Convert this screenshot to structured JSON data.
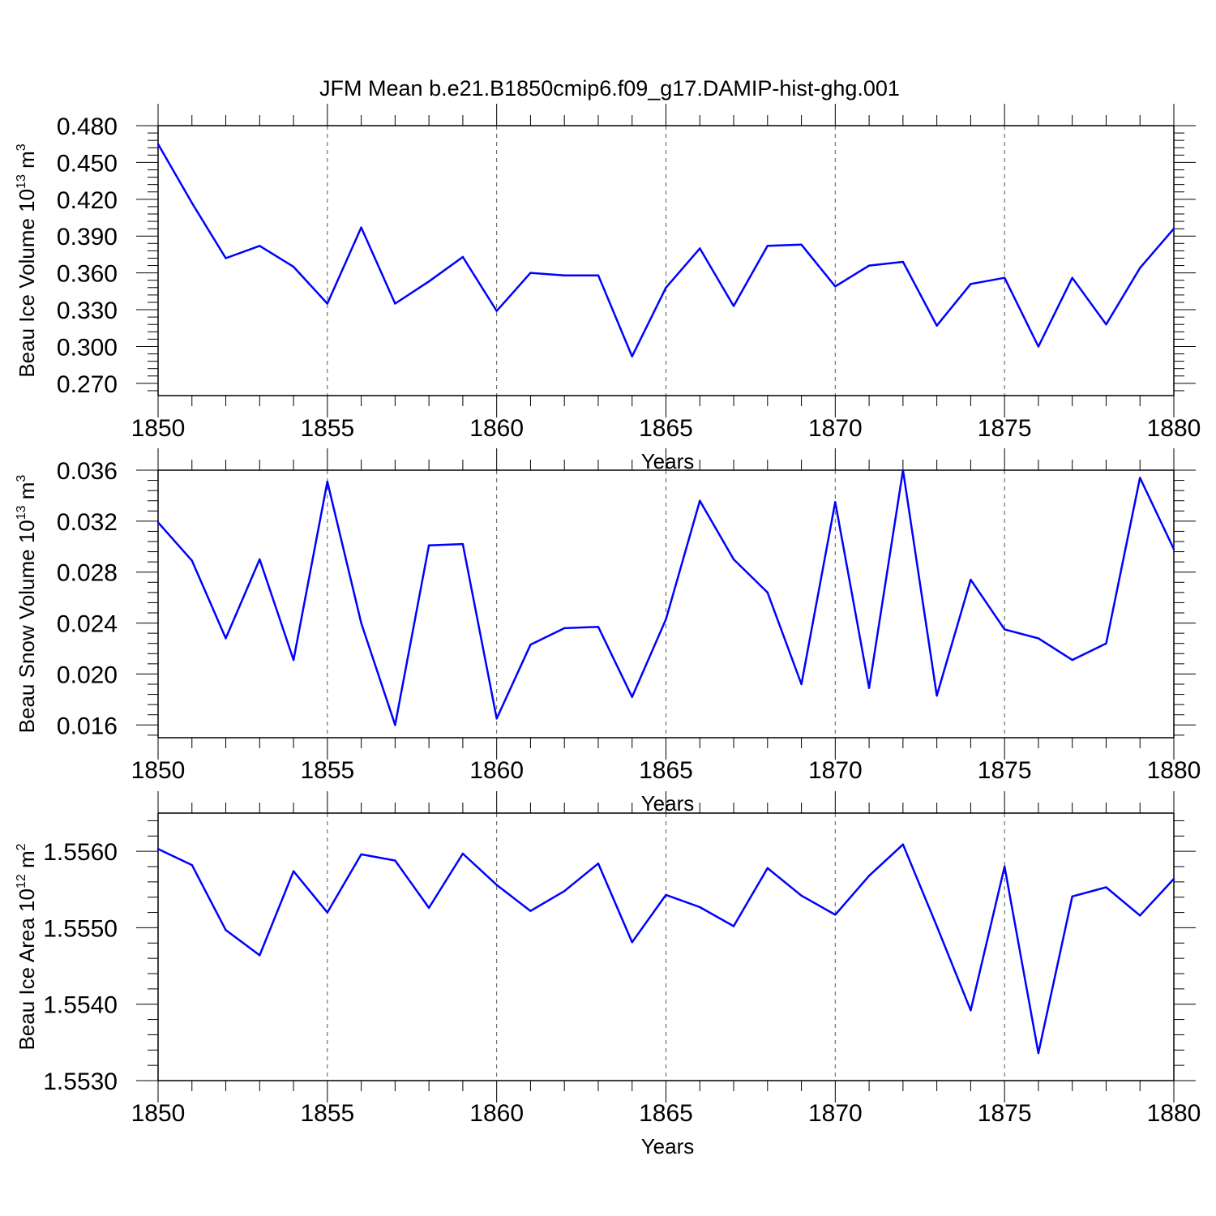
{
  "title": "JFM Mean b.e21.B1850cmip6.f09_g17.DAMIP-hist-ghg.001",
  "colors": {
    "line": "#0000ff",
    "axis": "#000000",
    "grid": "#555555"
  },
  "chart_data": [
    {
      "type": "line",
      "ylabel_base": "Beau Ice Volume 10",
      "ylabel_exp": "13",
      "ylabel_unit": " m",
      "ylabel_unit_exp": "3",
      "xlabel": "Years",
      "xlim": [
        1850,
        1880
      ],
      "ylim": [
        0.26,
        0.48
      ],
      "x_ticks": [
        "1850",
        "1855",
        "1860",
        "1865",
        "1870",
        "1875",
        "1880"
      ],
      "y_ticks": [
        "0.270",
        "0.300",
        "0.330",
        "0.360",
        "0.390",
        "0.420",
        "0.450",
        "0.480"
      ],
      "x": [
        1850,
        1851,
        1852,
        1853,
        1854,
        1855,
        1856,
        1857,
        1858,
        1859,
        1860,
        1861,
        1862,
        1863,
        1864,
        1865,
        1866,
        1867,
        1868,
        1869,
        1870,
        1871,
        1872,
        1873,
        1874,
        1875,
        1876,
        1877,
        1878,
        1879,
        1880
      ],
      "values": [
        0.465,
        0.417,
        0.372,
        0.382,
        0.365,
        0.335,
        0.397,
        0.335,
        0.353,
        0.373,
        0.329,
        0.36,
        0.358,
        0.358,
        0.292,
        0.348,
        0.38,
        0.333,
        0.382,
        0.383,
        0.349,
        0.366,
        0.369,
        0.317,
        0.351,
        0.356,
        0.3,
        0.356,
        0.318,
        0.364,
        0.396
      ]
    },
    {
      "type": "line",
      "ylabel_base": "Beau Snow Volume 10",
      "ylabel_exp": "13",
      "ylabel_unit": " m",
      "ylabel_unit_exp": "3",
      "xlabel": "Years",
      "xlim": [
        1850,
        1880
      ],
      "ylim": [
        0.015,
        0.036
      ],
      "x_ticks": [
        "1850",
        "1855",
        "1860",
        "1865",
        "1870",
        "1875",
        "1880"
      ],
      "y_ticks": [
        "0.016",
        "0.020",
        "0.024",
        "0.028",
        "0.032",
        "0.036"
      ],
      "x": [
        1850,
        1851,
        1852,
        1853,
        1854,
        1855,
        1856,
        1857,
        1858,
        1859,
        1860,
        1861,
        1862,
        1863,
        1864,
        1865,
        1866,
        1867,
        1868,
        1869,
        1870,
        1871,
        1872,
        1873,
        1874,
        1875,
        1876,
        1877,
        1878,
        1879,
        1880
      ],
      "values": [
        0.0319,
        0.0289,
        0.0228,
        0.029,
        0.0211,
        0.0351,
        0.024,
        0.016,
        0.0301,
        0.0302,
        0.0165,
        0.0223,
        0.0236,
        0.0237,
        0.0182,
        0.0243,
        0.0336,
        0.029,
        0.0264,
        0.0192,
        0.0335,
        0.0189,
        0.036,
        0.0183,
        0.0274,
        0.0235,
        0.0228,
        0.0211,
        0.0224,
        0.0354,
        0.0298
      ]
    },
    {
      "type": "line",
      "ylabel_base": "Beau Ice Area 10",
      "ylabel_exp": "12",
      "ylabel_unit": " m",
      "ylabel_unit_exp": "2",
      "xlabel": "Years",
      "xlim": [
        1850,
        1880
      ],
      "ylim": [
        1.553,
        1.5565
      ],
      "x_ticks": [
        "1850",
        "1855",
        "1860",
        "1865",
        "1870",
        "1875",
        "1880"
      ],
      "y_ticks": [
        "1.5530",
        "1.5540",
        "1.5550",
        "1.5560"
      ],
      "x": [
        1850,
        1851,
        1852,
        1853,
        1854,
        1855,
        1856,
        1857,
        1858,
        1859,
        1860,
        1861,
        1862,
        1863,
        1864,
        1865,
        1866,
        1867,
        1868,
        1869,
        1870,
        1871,
        1872,
        1873,
        1874,
        1875,
        1876,
        1877,
        1878,
        1879,
        1880
      ],
      "values": [
        1.55603,
        1.55582,
        1.55497,
        1.55464,
        1.55574,
        1.5552,
        1.55596,
        1.55588,
        1.55526,
        1.55597,
        1.55556,
        1.55522,
        1.55548,
        1.55584,
        1.55481,
        1.55543,
        1.55527,
        1.55502,
        1.55578,
        1.55542,
        1.55517,
        1.55568,
        1.55609,
        1.55502,
        1.55392,
        1.5558,
        1.55336,
        1.55541,
        1.55553,
        1.55516,
        1.55564
      ]
    }
  ]
}
